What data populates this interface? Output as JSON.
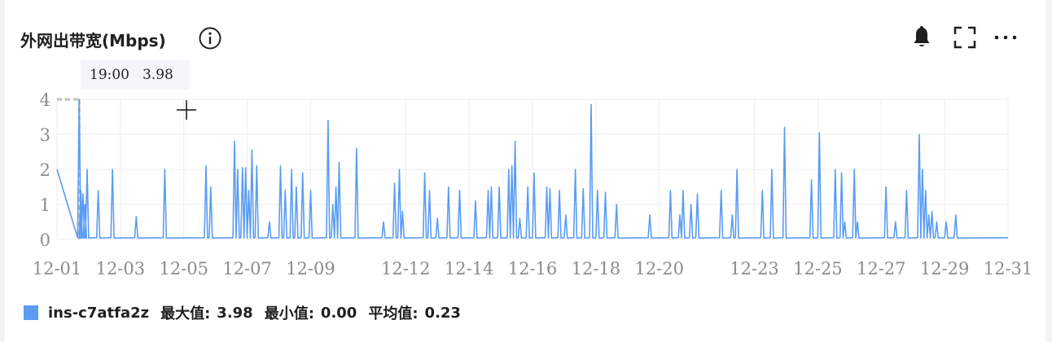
{
  "header": {
    "title": "外网出带宽(Mbps)",
    "icons": [
      "info-icon",
      "bell-icon",
      "fullscreen-icon",
      "more-icon"
    ]
  },
  "tooltip": {
    "time": "19:00",
    "value": "3.98"
  },
  "legend": {
    "series_name": "ins-c7atfa2z",
    "max_label": "最大值:",
    "max_value": "3.98",
    "min_label": "最小值:",
    "min_value": "0.00",
    "avg_label": "平均值:",
    "avg_value": "0.23"
  },
  "colors": {
    "series": "#5b9cf3",
    "grid": "#ebedf0",
    "axis_text": "#8c8c8c",
    "guide": "#bfbfbf"
  },
  "chart_data": {
    "type": "line",
    "xlabel": "",
    "ylabel": "",
    "ylim": [
      0,
      4
    ],
    "xlim": [
      1,
      31
    ],
    "y_ticks": [
      "0",
      "1",
      "2",
      "3",
      "4"
    ],
    "x_ticks": [
      "12-01",
      "12-03",
      "12-05",
      "12-07",
      "12-09",
      "12-12",
      "12-14",
      "12-16",
      "12-18",
      "12-20",
      "12-23",
      "12-25",
      "12-27",
      "12-29",
      "12-31"
    ],
    "x_tick_days": [
      1,
      3,
      5,
      7,
      9,
      12,
      14,
      16,
      18,
      20,
      23,
      25,
      27,
      29,
      31
    ],
    "grid": true,
    "baseline": 0.05,
    "series": [
      {
        "name": "ins-c7atfa2z",
        "spikes": [
          [
            1.0,
            2.0
          ],
          [
            1.7,
            4.0
          ],
          [
            1.75,
            1.4
          ],
          [
            1.82,
            1.3
          ],
          [
            1.88,
            1.0
          ],
          [
            1.95,
            2.0
          ],
          [
            2.3,
            1.4
          ],
          [
            2.75,
            2.0
          ],
          [
            3.5,
            0.65
          ],
          [
            4.4,
            2.0
          ],
          [
            5.7,
            2.1
          ],
          [
            5.85,
            1.5
          ],
          [
            6.6,
            2.8
          ],
          [
            6.7,
            2.0
          ],
          [
            6.85,
            2.05
          ],
          [
            6.95,
            2.05
          ],
          [
            7.05,
            1.4
          ],
          [
            7.15,
            2.55
          ],
          [
            7.3,
            2.1
          ],
          [
            7.7,
            0.5
          ],
          [
            8.05,
            2.1
          ],
          [
            8.2,
            1.4
          ],
          [
            8.4,
            2.0
          ],
          [
            8.55,
            1.5
          ],
          [
            8.75,
            1.9
          ],
          [
            9.0,
            1.4
          ],
          [
            9.55,
            3.4
          ],
          [
            9.7,
            1.0
          ],
          [
            9.8,
            1.5
          ],
          [
            9.9,
            2.2
          ],
          [
            10.45,
            2.6
          ],
          [
            11.3,
            0.5
          ],
          [
            11.65,
            1.6
          ],
          [
            11.8,
            2.0
          ],
          [
            11.9,
            0.8
          ],
          [
            12.6,
            1.9
          ],
          [
            12.75,
            1.4
          ],
          [
            13.0,
            0.6
          ],
          [
            13.35,
            1.5
          ],
          [
            13.7,
            1.4
          ],
          [
            14.2,
            1.1
          ],
          [
            14.6,
            1.4
          ],
          [
            14.7,
            1.5
          ],
          [
            14.95,
            1.5
          ],
          [
            15.25,
            2.0
          ],
          [
            15.35,
            2.1
          ],
          [
            15.45,
            2.8
          ],
          [
            15.6,
            0.6
          ],
          [
            15.85,
            1.5
          ],
          [
            16.05,
            1.9
          ],
          [
            16.45,
            1.5
          ],
          [
            16.55,
            1.45
          ],
          [
            16.85,
            1.4
          ],
          [
            17.05,
            0.7
          ],
          [
            17.35,
            2.0
          ],
          [
            17.6,
            1.45
          ],
          [
            17.85,
            3.85
          ],
          [
            18.05,
            1.4
          ],
          [
            18.3,
            1.35
          ],
          [
            18.65,
            1.0
          ],
          [
            19.7,
            0.7
          ],
          [
            20.35,
            1.4
          ],
          [
            20.65,
            0.7
          ],
          [
            20.75,
            1.4
          ],
          [
            21.0,
            1.0
          ],
          [
            21.2,
            1.3
          ],
          [
            21.95,
            1.4
          ],
          [
            22.3,
            0.7
          ],
          [
            22.45,
            2.0
          ],
          [
            23.25,
            1.4
          ],
          [
            23.55,
            2.0
          ],
          [
            23.95,
            3.2
          ],
          [
            24.8,
            1.7
          ],
          [
            25.05,
            3.05
          ],
          [
            25.55,
            2.0
          ],
          [
            25.75,
            1.9
          ],
          [
            25.85,
            0.5
          ],
          [
            26.15,
            2.0
          ],
          [
            26.25,
            0.5
          ],
          [
            27.15,
            1.5
          ],
          [
            27.45,
            0.5
          ],
          [
            27.8,
            1.4
          ],
          [
            28.2,
            3.0
          ],
          [
            28.3,
            2.0
          ],
          [
            28.4,
            1.4
          ],
          [
            28.5,
            0.7
          ],
          [
            28.6,
            0.8
          ],
          [
            28.75,
            0.5
          ],
          [
            29.05,
            0.5
          ],
          [
            29.35,
            0.7
          ]
        ]
      }
    ]
  }
}
